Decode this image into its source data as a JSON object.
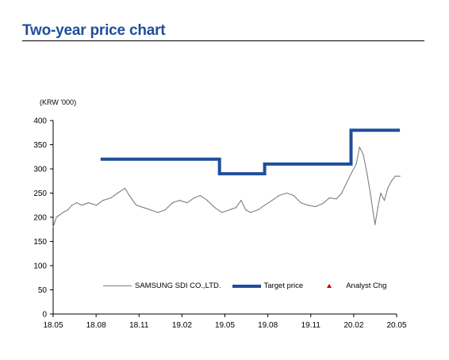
{
  "title": "Two-year price chart",
  "unit_label": "(KRW '000)",
  "chart_data": {
    "type": "line",
    "ylim": [
      0,
      400
    ],
    "yticks": [
      0,
      50,
      100,
      150,
      200,
      250,
      300,
      350,
      400
    ],
    "xlim": [
      "2018-05",
      "2020-05"
    ],
    "xtick_labels": [
      "18.05",
      "18.08",
      "18.11",
      "19.02",
      "19.05",
      "19.08",
      "19.11",
      "20.02",
      "20.05"
    ],
    "grid": false,
    "legend_placement": "bottom",
    "series": [
      {
        "name": "SAMSUNG SDI CO.,LTD.",
        "color": "#7f7f7f",
        "points": [
          [
            "2018-05-01",
            180
          ],
          [
            "2018-05-08",
            200
          ],
          [
            "2018-05-15",
            205
          ],
          [
            "2018-05-22",
            210
          ],
          [
            "2018-06-01",
            215
          ],
          [
            "2018-06-10",
            225
          ],
          [
            "2018-06-20",
            230
          ],
          [
            "2018-07-01",
            225
          ],
          [
            "2018-07-15",
            230
          ],
          [
            "2018-08-01",
            225
          ],
          [
            "2018-08-15",
            235
          ],
          [
            "2018-09-01",
            240
          ],
          [
            "2018-09-15",
            250
          ],
          [
            "2018-10-01",
            260
          ],
          [
            "2018-10-10",
            245
          ],
          [
            "2018-10-25",
            225
          ],
          [
            "2018-11-10",
            220
          ],
          [
            "2018-11-25",
            215
          ],
          [
            "2018-12-10",
            210
          ],
          [
            "2018-12-25",
            215
          ],
          [
            "2019-01-10",
            230
          ],
          [
            "2019-01-25",
            235
          ],
          [
            "2019-02-10",
            230
          ],
          [
            "2019-02-25",
            240
          ],
          [
            "2019-03-10",
            245
          ],
          [
            "2019-03-25",
            235
          ],
          [
            "2019-04-10",
            220
          ],
          [
            "2019-04-25",
            210
          ],
          [
            "2019-05-10",
            215
          ],
          [
            "2019-05-25",
            220
          ],
          [
            "2019-06-05",
            235
          ],
          [
            "2019-06-15",
            215
          ],
          [
            "2019-06-25",
            210
          ],
          [
            "2019-07-10",
            215
          ],
          [
            "2019-07-25",
            225
          ],
          [
            "2019-08-10",
            235
          ],
          [
            "2019-08-25",
            245
          ],
          [
            "2019-09-10",
            250
          ],
          [
            "2019-09-25",
            245
          ],
          [
            "2019-10-10",
            230
          ],
          [
            "2019-10-25",
            225
          ],
          [
            "2019-11-10",
            222
          ],
          [
            "2019-11-25",
            228
          ],
          [
            "2019-12-10",
            240
          ],
          [
            "2019-12-25",
            238
          ],
          [
            "2020-01-05",
            250
          ],
          [
            "2020-01-15",
            270
          ],
          [
            "2020-01-25",
            290
          ],
          [
            "2020-02-05",
            310
          ],
          [
            "2020-02-12",
            345
          ],
          [
            "2020-02-20",
            330
          ],
          [
            "2020-02-28",
            290
          ],
          [
            "2020-03-06",
            250
          ],
          [
            "2020-03-12",
            210
          ],
          [
            "2020-03-16",
            185
          ],
          [
            "2020-03-22",
            220
          ],
          [
            "2020-03-28",
            250
          ],
          [
            "2020-04-05",
            235
          ],
          [
            "2020-04-12",
            260
          ],
          [
            "2020-04-20",
            275
          ],
          [
            "2020-04-28",
            285
          ],
          [
            "2020-05-08",
            285
          ]
        ]
      },
      {
        "name": "Target price",
        "color": "#1f4e9c",
        "points": [
          [
            "2018-08-10",
            320
          ],
          [
            "2019-04-20",
            320
          ],
          [
            "2019-04-20",
            290
          ],
          [
            "2019-07-25",
            290
          ],
          [
            "2019-07-25",
            310
          ],
          [
            "2020-01-25",
            310
          ],
          [
            "2020-01-25",
            380
          ],
          [
            "2020-05-08",
            380
          ]
        ]
      }
    ],
    "markers": {
      "name": "Analyst Chg",
      "color": "#c00000",
      "shape": "triangle",
      "points": []
    }
  }
}
